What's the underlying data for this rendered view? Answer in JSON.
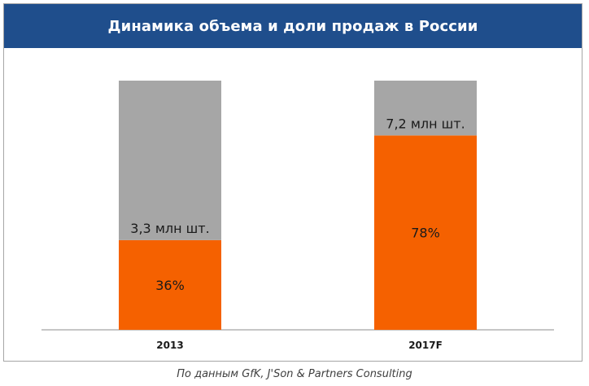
{
  "chart_data": {
    "type": "bar",
    "stacked": true,
    "title": "Динамика объема и доли продаж в России",
    "categories": [
      "2013",
      "2017F"
    ],
    "series": [
      {
        "values": [
          36,
          78
        ],
        "labels": [
          "36%",
          "78%"
        ],
        "color": "#f56100"
      },
      {
        "values": [
          64,
          22
        ],
        "color": "#a6a6a6"
      }
    ],
    "total_labels": [
      "3,3 млн шт.",
      "7,2 млн шт."
    ],
    "ylim": [
      0,
      100
    ],
    "grid": false,
    "legend": "none"
  },
  "source_note": "По данным GfK, J'Son & Partners Consulting"
}
